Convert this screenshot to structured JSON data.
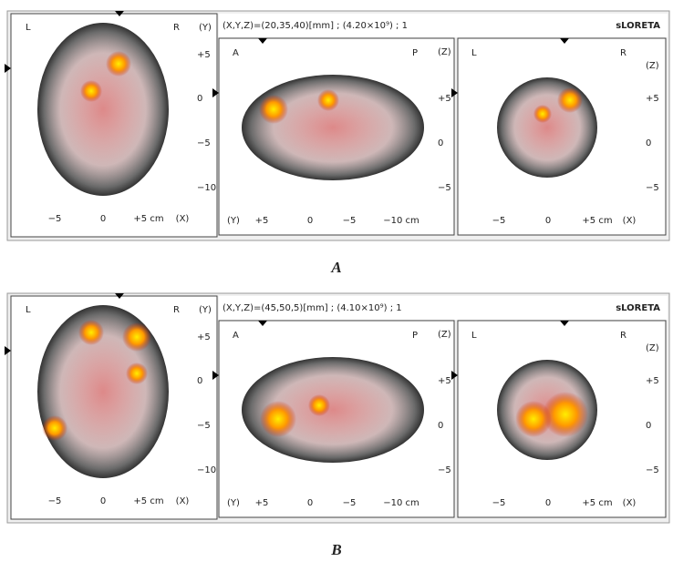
{
  "panels": [
    {
      "label": "A",
      "header": "(X,Y,Z)=(20,35,40)[mm] ; (4.20×10⁹) ; 1",
      "software": "sLORETA",
      "axial": {
        "left": "L",
        "right": "R",
        "axis": "(Y)",
        "yticks": [
          "+5",
          "0",
          "−5",
          "−10"
        ],
        "xticks": [
          "−5",
          "0",
          "+5 cm",
          "(X)"
        ]
      },
      "sagittal": {
        "left": "A",
        "right": "P",
        "axis": "(Z)",
        "yticks": [
          "+5",
          "0",
          "−5"
        ],
        "xticks": [
          "(Y)",
          "+5",
          "0",
          "−5",
          "−10 cm"
        ]
      },
      "coronal": {
        "left": "L",
        "right": "R",
        "axis": "(Z)",
        "yticks": [
          "+5",
          "0",
          "−5"
        ],
        "xticks": [
          "−5",
          "0",
          "+5 cm",
          "(X)"
        ]
      }
    },
    {
      "label": "B",
      "header": "(X,Y,Z)=(45,50,5)[mm] ; (4.10×10⁹) ; 1",
      "software": "sLORETA",
      "axial": {
        "left": "L",
        "right": "R",
        "axis": "(Y)",
        "yticks": [
          "+5",
          "0",
          "−5",
          "−10"
        ],
        "xticks": [
          "−5",
          "0",
          "+5 cm",
          "(X)"
        ]
      },
      "sagittal": {
        "left": "A",
        "right": "P",
        "axis": "(Z)",
        "yticks": [
          "+5",
          "0",
          "−5"
        ],
        "xticks": [
          "(Y)",
          "+5",
          "0",
          "−5",
          "−10 cm"
        ]
      },
      "coronal": {
        "left": "L",
        "right": "R",
        "axis": "(Z)",
        "yticks": [
          "+5",
          "0",
          "−5"
        ],
        "xticks": [
          "−5",
          "0",
          "+5 cm",
          "(X)"
        ]
      }
    }
  ]
}
